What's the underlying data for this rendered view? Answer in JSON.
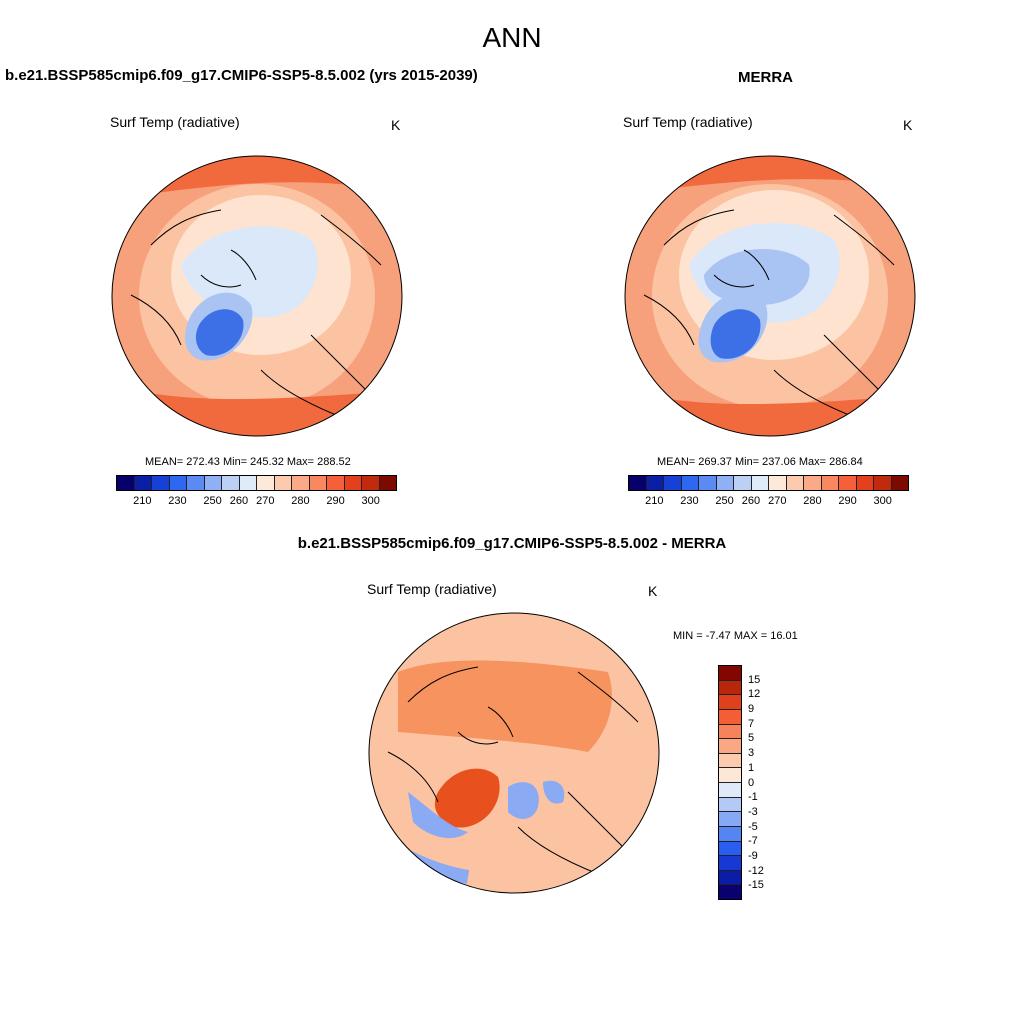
{
  "figure": {
    "title": "ANN"
  },
  "panels": [
    {
      "id": "model",
      "case_title": "b.e21.BSSP585cmip6.f09_g17.CMIP6-SSP5-8.5.002 (yrs 2015-2039)",
      "variable": "Surf Temp (radiative)",
      "units": "K",
      "stats": "MEAN= 272.43  Min= 245.32  Max= 288.52"
    },
    {
      "id": "obs",
      "case_title": "MERRA",
      "variable": "Surf Temp (radiative)",
      "units": "K",
      "stats": "MEAN= 269.37  Min= 237.06  Max= 286.84"
    },
    {
      "id": "diff",
      "case_title": "b.e21.BSSP585cmip6.f09_g17.CMIP6-SSP5-8.5.002 - MERRA",
      "variable": "Surf Temp (radiative)",
      "units": "K",
      "stats": "MIN =  -7.47 MAX =  16.01"
    }
  ],
  "colorbars": {
    "absolute": {
      "colors": [
        "#08006a",
        "#0a1ea8",
        "#1740d6",
        "#2f68f0",
        "#5b8bf2",
        "#8fb0f4",
        "#bcd0f6",
        "#e0ebfa",
        "#fde9d8",
        "#fccbad",
        "#fba986",
        "#f98760",
        "#f5603a",
        "#e5401d",
        "#c12a0d",
        "#7c0a00"
      ],
      "ticks": [
        "210",
        "230",
        "250",
        "260",
        "270",
        "280",
        "290",
        "300"
      ]
    },
    "difference": {
      "colors": [
        "#0a006e",
        "#0b1ca8",
        "#1738d2",
        "#2a5ef0",
        "#5585f3",
        "#87a8f4",
        "#b4caf6",
        "#dfe9fa",
        "#fde7d6",
        "#fccaad",
        "#fba784",
        "#f8825c",
        "#f45e36",
        "#e0401b",
        "#b8260b",
        "#820700"
      ],
      "ticks": [
        "15",
        "12",
        "9",
        "7",
        "5",
        "3",
        "1",
        "0",
        "-1",
        "-3",
        "-5",
        "-7",
        "-9",
        "-12",
        "-15"
      ]
    }
  },
  "map_colors": {
    "ocean_warm": "#f7a07c",
    "ocean_mid": "#fbc3a2",
    "ocean_cool": "#fde3d0",
    "ice_light": "#dbe8fa",
    "ice_mid": "#a9c3f3",
    "ice_dark": "#3d6fe6",
    "hot": "#f06a3e",
    "diff_bg": "#fbc3a2",
    "diff_warm": "#f7935f",
    "diff_hot": "#e8501e",
    "diff_cool": "#8aaaf3"
  }
}
